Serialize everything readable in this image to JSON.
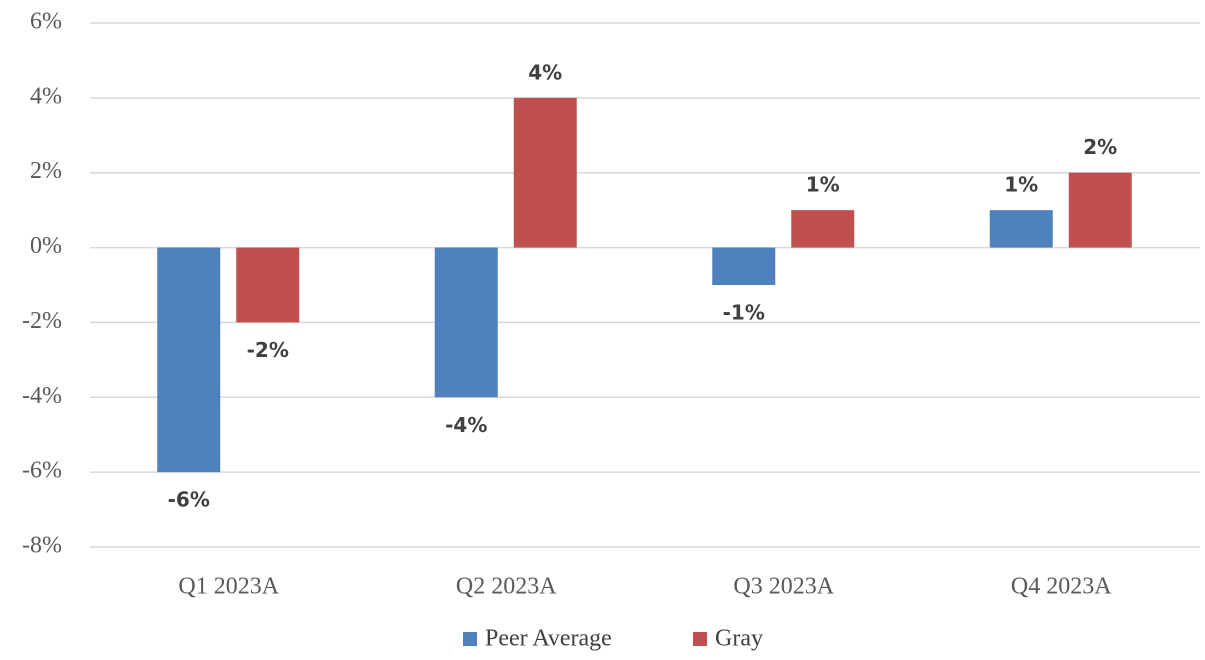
{
  "chart_data": {
    "type": "bar",
    "categories": [
      "Q1 2023A",
      "Q2 2023A",
      "Q3 2023A",
      "Q4 2023A"
    ],
    "series": [
      {
        "name": "Peer Average",
        "color": "#4f81bd",
        "values": [
          -6,
          -4,
          -1,
          1
        ],
        "value_labels": [
          "-6%",
          "-4%",
          "-1%",
          "1%"
        ]
      },
      {
        "name": "Gray",
        "color": "#c0504d",
        "values": [
          -2,
          4,
          1,
          2
        ],
        "value_labels": [
          "-2%",
          "4%",
          "1%",
          "2%"
        ]
      }
    ],
    "ylim": [
      -8,
      6
    ],
    "yticks": [
      {
        "value": -8,
        "label": "-8%"
      },
      {
        "value": -6,
        "label": "-6%"
      },
      {
        "value": -4,
        "label": "-4%"
      },
      {
        "value": -2,
        "label": "-2%"
      },
      {
        "value": 0,
        "label": "0%"
      },
      {
        "value": 2,
        "label": "2%"
      },
      {
        "value": 4,
        "label": "4%"
      },
      {
        "value": 6,
        "label": "6%"
      }
    ],
    "grid": true,
    "legend": "bottom"
  }
}
